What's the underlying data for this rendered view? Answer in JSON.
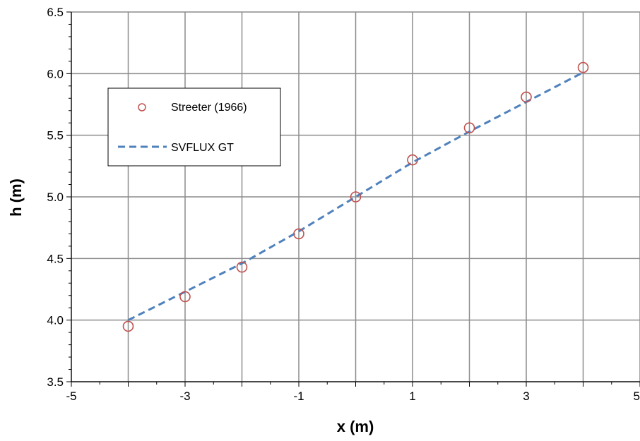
{
  "chart_data": {
    "type": "scatter",
    "xlabel": "x (m)",
    "ylabel": "h (m)",
    "xlim": [
      -5,
      5
    ],
    "ylim": [
      3.5,
      6.5
    ],
    "xticks": [
      -5,
      -3,
      -1,
      1,
      3,
      5
    ],
    "xtick_labels": [
      "-5",
      "-3",
      "-1",
      "1",
      "3",
      "5"
    ],
    "yticks": [
      3.5,
      4.0,
      4.5,
      5.0,
      5.5,
      6.0,
      6.5
    ],
    "ytick_labels": [
      "3.5",
      "4.0",
      "4.5",
      "5.0",
      "5.5",
      "6.0",
      "6.5"
    ],
    "xgrid": [
      -5,
      -4,
      -3,
      -2,
      -1,
      0,
      1,
      2,
      3,
      4,
      5
    ],
    "ygrid": [
      3.5,
      4.0,
      4.5,
      5.0,
      5.5,
      6.0,
      6.5
    ],
    "grid": true,
    "legend_position": "upper-left",
    "series": [
      {
        "name": "Streeter (1966)",
        "kind": "markers",
        "color": "#c0504d",
        "x": [
          -4,
          -3,
          -2,
          -1,
          0,
          1,
          2,
          3,
          4
        ],
        "y": [
          3.95,
          4.19,
          4.43,
          4.7,
          5.0,
          5.3,
          5.56,
          5.81,
          6.05
        ]
      },
      {
        "name": "SVFLUX GT",
        "kind": "dashed-line",
        "color": "#4f81bd",
        "x": [
          -4,
          -3,
          -2,
          -1,
          0,
          1,
          2,
          3,
          4
        ],
        "y": [
          4.0,
          4.23,
          4.46,
          4.72,
          5.0,
          5.28,
          5.53,
          5.77,
          6.01
        ]
      }
    ]
  }
}
